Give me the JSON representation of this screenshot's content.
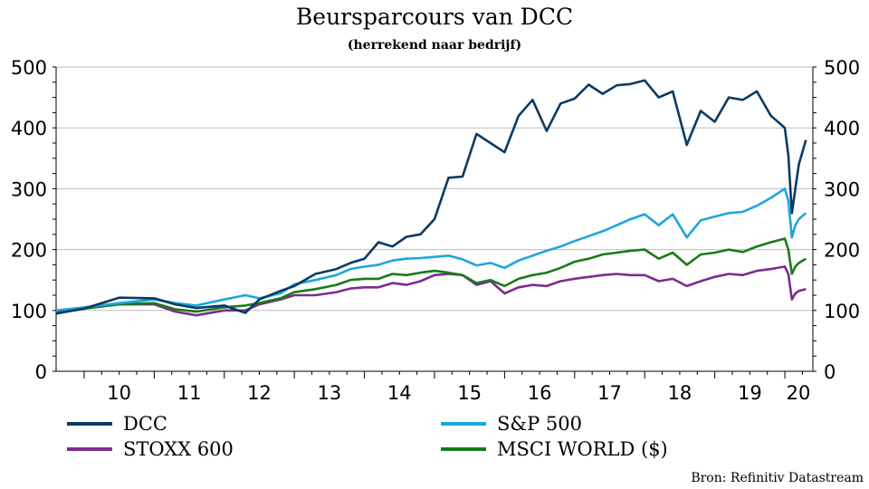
{
  "chart_data": {
    "type": "line",
    "title": "Beursparcours van DCC",
    "subtitle": "(herrekend naar bedrijf)",
    "source": "Bron: Refinitiv Datastream",
    "ylim": [
      0,
      500
    ],
    "yticks": [
      0,
      100,
      200,
      300,
      400,
      500
    ],
    "xlim": [
      2009.6,
      2020.4
    ],
    "xtick_labels": [
      "10",
      "11",
      "12",
      "13",
      "14",
      "15",
      "16",
      "17",
      "18",
      "19",
      "20"
    ],
    "grid": true,
    "legend_position": "bottom",
    "x": [
      2009.6,
      2010.0,
      2010.5,
      2011.0,
      2011.3,
      2011.6,
      2012.0,
      2012.3,
      2012.5,
      2012.8,
      2013.0,
      2013.3,
      2013.6,
      2013.8,
      2014.0,
      2014.2,
      2014.4,
      2014.6,
      2014.8,
      2015.0,
      2015.2,
      2015.4,
      2015.6,
      2015.8,
      2016.0,
      2016.2,
      2016.4,
      2016.6,
      2016.8,
      2017.0,
      2017.2,
      2017.4,
      2017.6,
      2017.8,
      2018.0,
      2018.2,
      2018.4,
      2018.6,
      2018.8,
      2019.0,
      2019.2,
      2019.4,
      2019.6,
      2019.8,
      2020.0,
      2020.05,
      2020.1,
      2020.15,
      2020.2,
      2020.3
    ],
    "series": [
      {
        "name": "DCC",
        "color": "#0b3a63",
        "values": [
          95,
          103,
          121,
          120,
          110,
          104,
          108,
          96,
          118,
          132,
          140,
          160,
          168,
          178,
          185,
          212,
          205,
          221,
          225,
          250,
          318,
          320,
          390,
          375,
          360,
          420,
          446,
          395,
          440,
          448,
          471,
          456,
          470,
          472,
          478,
          450,
          460,
          372,
          428,
          410,
          450,
          446,
          460,
          420,
          400,
          355,
          260,
          300,
          340,
          380
        ]
      },
      {
        "name": "S&P 500",
        "color": "#1ca6de",
        "values": [
          100,
          105,
          112,
          118,
          112,
          108,
          118,
          125,
          120,
          128,
          143,
          150,
          158,
          168,
          172,
          175,
          182,
          185,
          186,
          188,
          190,
          184,
          174,
          178,
          170,
          182,
          190,
          198,
          205,
          214,
          222,
          230,
          240,
          250,
          258,
          240,
          258,
          220,
          248,
          254,
          260,
          262,
          272,
          285,
          300,
          280,
          220,
          240,
          250,
          260
        ]
      },
      {
        "name": "STOXX 600",
        "color": "#7b2d8e",
        "values": [
          95,
          105,
          110,
          110,
          98,
          92,
          100,
          100,
          110,
          118,
          125,
          125,
          130,
          136,
          138,
          138,
          145,
          142,
          148,
          158,
          160,
          158,
          142,
          148,
          128,
          138,
          142,
          140,
          148,
          152,
          155,
          158,
          160,
          158,
          158,
          148,
          152,
          140,
          148,
          155,
          160,
          158,
          165,
          168,
          172,
          160,
          118,
          128,
          132,
          135
        ]
      },
      {
        "name": "MSCI WORLD ($)",
        "color": "#1a7a1a",
        "values": [
          97,
          103,
          110,
          112,
          102,
          98,
          105,
          108,
          112,
          120,
          130,
          135,
          142,
          150,
          152,
          152,
          160,
          158,
          162,
          165,
          162,
          158,
          145,
          150,
          140,
          152,
          158,
          162,
          170,
          180,
          185,
          192,
          195,
          198,
          200,
          185,
          195,
          175,
          192,
          195,
          200,
          196,
          205,
          212,
          218,
          200,
          160,
          172,
          178,
          185
        ]
      }
    ]
  }
}
